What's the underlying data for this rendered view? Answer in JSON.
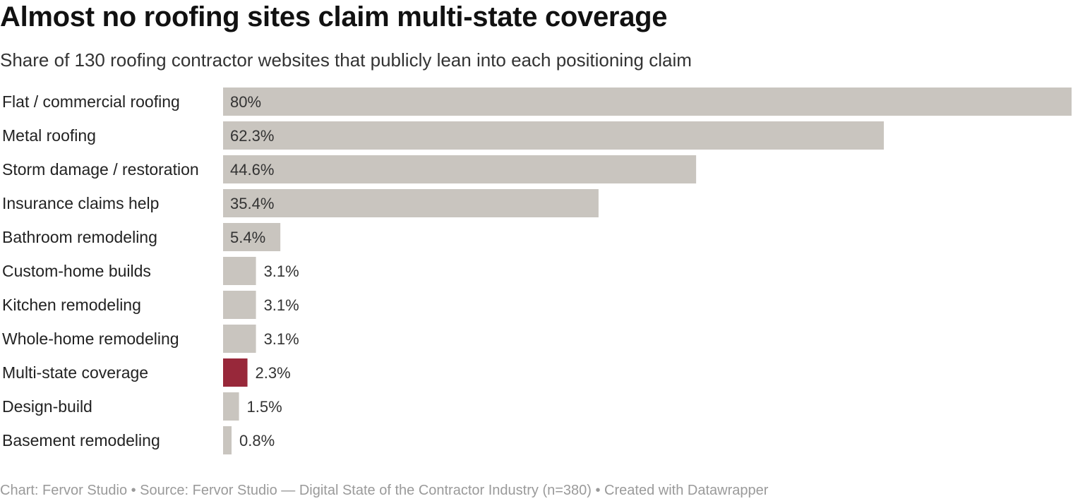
{
  "header": {
    "title": "Almost no roofing sites claim multi-state coverage",
    "subtitle": "Share of 130 roofing contractor websites that publicly lean into each positioning claim"
  },
  "footer": {
    "text": "Chart: Fervor Studio • Source: Fervor Studio — Digital State of the Contractor Industry (n=380) • Created with Datawrapper"
  },
  "colors": {
    "bar": "#c9c5bf",
    "highlight": "#98283a",
    "label": "#222222",
    "value_text": "#333333"
  },
  "chart_data": {
    "type": "bar",
    "orientation": "horizontal",
    "title": "Almost no roofing sites claim multi-state coverage",
    "subtitle": "Share of 130 roofing contractor websites that publicly lean into each positioning claim",
    "categories": [
      "Flat / commercial roofing",
      "Metal roofing",
      "Storm damage / restoration",
      "Insurance claims help",
      "Bathroom remodeling",
      "Custom-home builds",
      "Kitchen remodeling",
      "Whole-home remodeling",
      "Multi-state coverage",
      "Design-build",
      "Basement remodeling"
    ],
    "values": [
      80,
      62.3,
      44.6,
      35.4,
      5.4,
      3.1,
      3.1,
      3.1,
      2.3,
      1.5,
      0.8
    ],
    "value_labels": [
      "80%",
      "62.3%",
      "44.6%",
      "35.4%",
      "5.4%",
      "3.1%",
      "3.1%",
      "3.1%",
      "2.3%",
      "1.5%",
      "0.8%"
    ],
    "unit": "%",
    "highlighted": [
      "Multi-state coverage"
    ],
    "xlim": [
      0,
      80
    ],
    "grid": false,
    "legend": "none"
  }
}
